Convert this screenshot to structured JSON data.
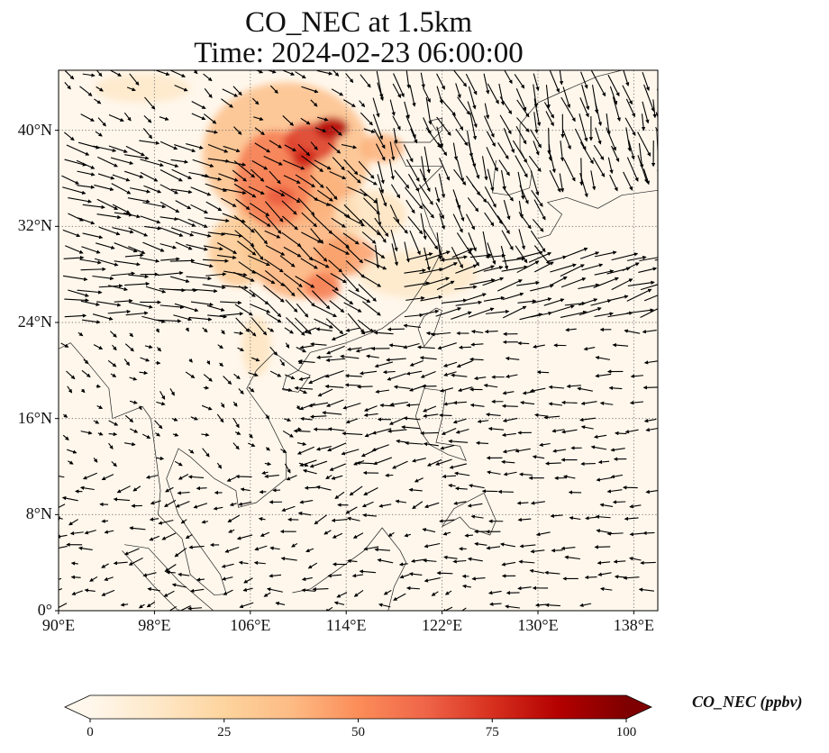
{
  "title_line1": "CO_NEC at 1.5km",
  "title_line2": "Time: 2024-02-23 06:00:00",
  "map": {
    "lon_range": [
      90,
      140
    ],
    "lat_range": [
      0,
      45
    ],
    "x_ticks": [
      {
        "lon": 90,
        "label": "90°E"
      },
      {
        "lon": 98,
        "label": "98°E"
      },
      {
        "lon": 106,
        "label": "106°E"
      },
      {
        "lon": 114,
        "label": "114°E"
      },
      {
        "lon": 122,
        "label": "122°E"
      },
      {
        "lon": 130,
        "label": "130°E"
      },
      {
        "lon": 138,
        "label": "138°E"
      }
    ],
    "y_ticks": [
      {
        "lat": 0,
        "label": "0°"
      },
      {
        "lat": 8,
        "label": "8°N"
      },
      {
        "lat": 16,
        "label": "16°N"
      },
      {
        "lat": 24,
        "label": "24°N"
      },
      {
        "lat": 32,
        "label": "32°N"
      },
      {
        "lat": 40,
        "label": "40°N"
      }
    ],
    "gridlines": "dotted"
  },
  "colorbar": {
    "label": "CO_NEC (ppbv)",
    "min": 0,
    "max": 100,
    "extend": "both",
    "colormap": "OrRd",
    "colors": [
      "#fff7ec",
      "#fee8c8",
      "#fdd49e",
      "#fdbb84",
      "#fc8d59",
      "#ef6548",
      "#d7301f",
      "#b30000",
      "#7f0000"
    ],
    "ticks": [
      {
        "value": 0,
        "label": "0"
      },
      {
        "value": 25,
        "label": "25"
      },
      {
        "value": 50,
        "label": "50"
      },
      {
        "value": 75,
        "label": "75"
      },
      {
        "value": 100,
        "label": "100"
      }
    ]
  },
  "co_field_blobs": [
    {
      "lon": 109,
      "lat": 38,
      "rlon": 7,
      "rlat": 6,
      "value": 35
    },
    {
      "lon": 110,
      "lat": 32,
      "rlon": 5,
      "rlat": 6,
      "value": 40
    },
    {
      "lon": 108,
      "lat": 36,
      "rlon": 3.2,
      "rlat": 4,
      "value": 55
    },
    {
      "lon": 111,
      "lat": 39,
      "rlon": 2.2,
      "rlat": 1.6,
      "value": 72
    },
    {
      "lon": 112.8,
      "lat": 40.2,
      "rlon": 1.4,
      "rlat": 0.9,
      "value": 88
    },
    {
      "lon": 110.5,
      "lat": 37.6,
      "rlon": 1.0,
      "rlat": 0.8,
      "value": 80
    },
    {
      "lon": 108.5,
      "lat": 34.5,
      "rlon": 1.2,
      "rlat": 0.8,
      "value": 65
    },
    {
      "lon": 114,
      "lat": 29.5,
      "rlon": 2.5,
      "rlat": 1.6,
      "value": 45
    },
    {
      "lon": 112,
      "lat": 27,
      "rlon": 1.5,
      "rlat": 1.2,
      "value": 55
    },
    {
      "lon": 117,
      "lat": 38.5,
      "rlon": 1.8,
      "rlat": 1.2,
      "value": 40
    },
    {
      "lon": 105,
      "lat": 30,
      "rlon": 2.5,
      "rlat": 3,
      "value": 30
    },
    {
      "lon": 106.5,
      "lat": 22,
      "rlon": 1.2,
      "rlat": 2.5,
      "value": 15
    },
    {
      "lon": 120,
      "lat": 28,
      "rlon": 5,
      "rlat": 2,
      "value": 12
    },
    {
      "lon": 97,
      "lat": 43.5,
      "rlon": 4,
      "rlat": 1.2,
      "value": 12
    },
    {
      "lon": 116,
      "lat": 33,
      "rlon": 3,
      "rlat": 2,
      "value": 15
    }
  ],
  "wind_regions": [
    {
      "lon": [
        90,
        104
      ],
      "lat": [
        30,
        40
      ],
      "u": 9,
      "v": -3,
      "spread": 0.2
    },
    {
      "lon": [
        90,
        104
      ],
      "lat": [
        24,
        30
      ],
      "u": 10,
      "v": -1,
      "spread": 0.2
    },
    {
      "lon": [
        104,
        116
      ],
      "lat": [
        24,
        38
      ],
      "u": 8,
      "v": -6,
      "spread": 0.25
    },
    {
      "lon": [
        116,
        130
      ],
      "lat": [
        30,
        45
      ],
      "u": 4,
      "v": -9,
      "spread": 0.3
    },
    {
      "lon": [
        130,
        140
      ],
      "lat": [
        36,
        45
      ],
      "u": 3,
      "v": -10,
      "spread": 0.3
    },
    {
      "lon": [
        118,
        140
      ],
      "lat": [
        24,
        30
      ],
      "u": 10,
      "v": 3,
      "spread": 0.2
    },
    {
      "lon": [
        90,
        110
      ],
      "lat": [
        12,
        24
      ],
      "u": 3,
      "v": -2,
      "spread": 0.5
    },
    {
      "lon": [
        110,
        125
      ],
      "lat": [
        12,
        24
      ],
      "u": -7,
      "v": -1,
      "spread": 0.3
    },
    {
      "lon": [
        90,
        125
      ],
      "lat": [
        0,
        12
      ],
      "u": -5,
      "v": -1,
      "spread": 0.45
    },
    {
      "lon": [
        125,
        140
      ],
      "lat": [
        0,
        24
      ],
      "u": -6,
      "v": 0,
      "spread": 0.2
    },
    {
      "lon": [
        90,
        116
      ],
      "lat": [
        38,
        45
      ],
      "u": 5,
      "v": -3,
      "spread": 0.4
    }
  ]
}
